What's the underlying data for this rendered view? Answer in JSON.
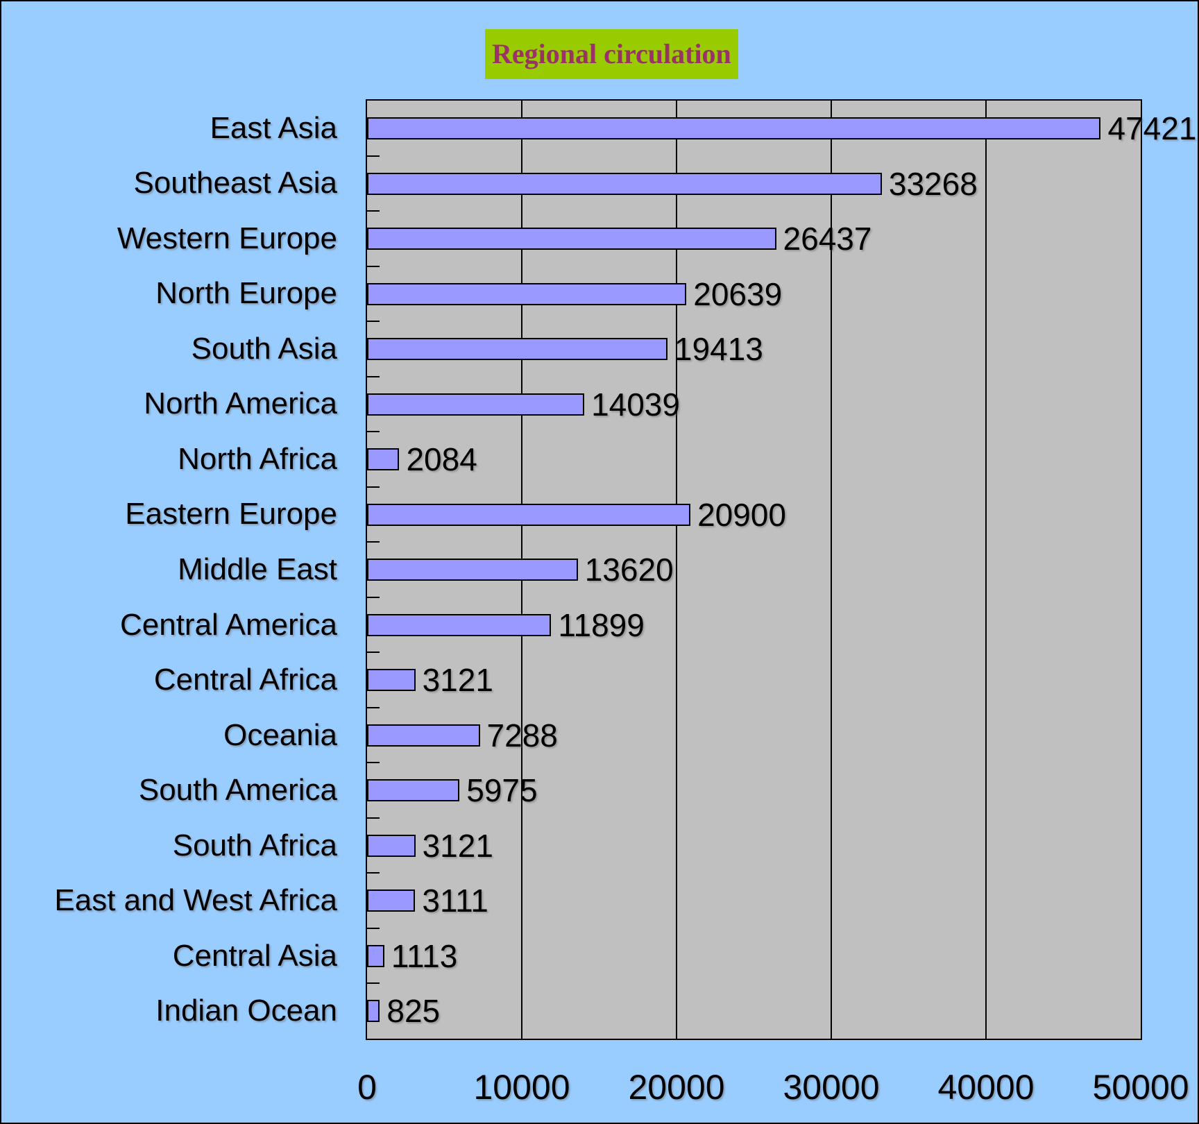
{
  "title": {
    "text": "Regional circulation",
    "bg_color": "#99CC00",
    "text_color": "#993366"
  },
  "colors": {
    "canvas_bg": "#99CCFF",
    "plot_bg": "#C0C0C0",
    "bar_fill": "#9999FF",
    "bar_border": "#000000",
    "gridline": "#000000",
    "label_text": "#000000"
  },
  "chart_data": {
    "type": "bar",
    "orientation": "horizontal",
    "title": "Regional circulation",
    "categories": [
      "East Asia",
      "Southeast Asia",
      "Western Europe",
      "North Europe",
      "South Asia",
      "North America",
      "North Africa",
      "Eastern Europe",
      "Middle East",
      "Central America",
      "Central Africa",
      "Oceania",
      "South America",
      "South Africa",
      "East and West Africa",
      "Central Asia",
      "Indian Ocean"
    ],
    "values": [
      47421,
      33268,
      26437,
      20639,
      19413,
      14039,
      2084,
      20900,
      13620,
      11899,
      3121,
      7288,
      5975,
      3121,
      3111,
      1113,
      825
    ],
    "value_labels": [
      "47421",
      "33268",
      "26437",
      "20639",
      "19413",
      "14039",
      "2084",
      "20900",
      "13620",
      "11899",
      "3121",
      "7288",
      "5975",
      "3121",
      "3111",
      "1113",
      "825"
    ],
    "xlabel": "",
    "ylabel": "",
    "xlim": [
      0,
      50000
    ],
    "x_ticks": [
      0,
      10000,
      20000,
      30000,
      40000,
      50000
    ],
    "x_tick_labels": [
      "0",
      "10000",
      "20000",
      "30000",
      "40000",
      "50000"
    ],
    "grid": true,
    "legend": false
  }
}
